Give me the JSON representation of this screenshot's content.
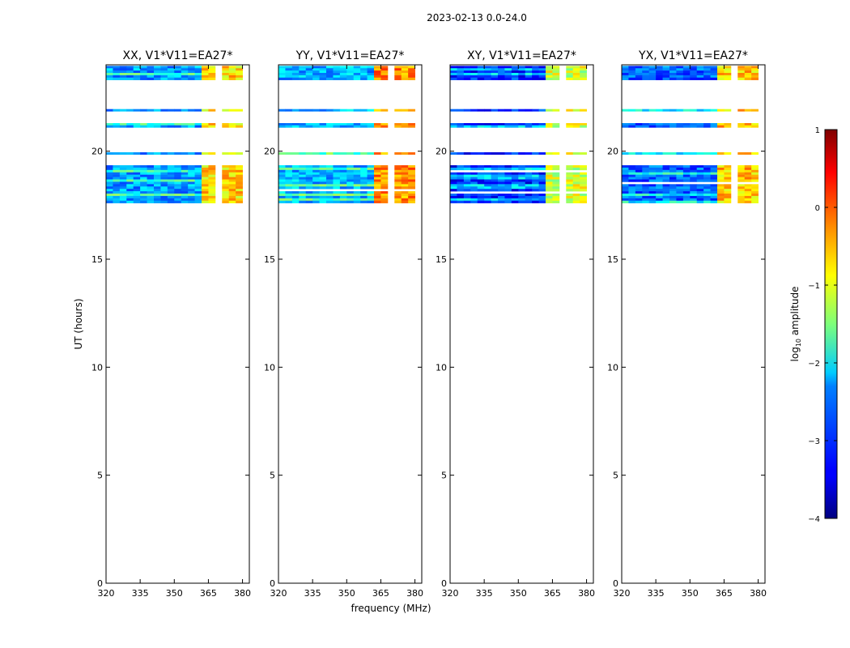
{
  "suptitle": "2023-02-13 0.0-24.0",
  "chart_data": [
    {
      "type": "heatmap",
      "title": "XX, V1*V11=EA27*",
      "xlabel": "",
      "ylabel": "UT (hours)",
      "xlim": [
        320,
        383
      ],
      "ylim": [
        0,
        24
      ],
      "xticks": [
        320,
        335,
        350,
        365,
        380
      ],
      "yticks": [
        0,
        5,
        10,
        15,
        20
      ],
      "data_ut_ranges": [
        [
          17.6,
          19.35
        ],
        [
          19.85,
          19.95
        ],
        [
          21.1,
          21.3
        ],
        [
          21.85,
          21.95
        ],
        [
          23.3,
          23.95
        ]
      ],
      "bright_freq_ranges": [
        [
          363.5,
          368.5
        ],
        [
          370,
          374
        ],
        [
          375.5,
          380
        ]
      ]
    },
    {
      "type": "heatmap",
      "title": "YY, V1*V11=EA27*",
      "xlabel": "",
      "ylabel": "",
      "xlim": [
        320,
        383
      ],
      "ylim": [
        0,
        24
      ],
      "xticks": [
        320,
        335,
        350,
        365,
        380
      ],
      "yticks": [
        0,
        5,
        10,
        15,
        20
      ],
      "data_ut_ranges": [
        [
          17.6,
          19.35
        ],
        [
          19.85,
          19.95
        ],
        [
          21.1,
          21.3
        ],
        [
          21.85,
          21.95
        ],
        [
          23.3,
          23.95
        ]
      ],
      "bright_freq_ranges": [
        [
          363.5,
          368.5
        ],
        [
          370,
          374
        ],
        [
          375.5,
          380
        ]
      ]
    },
    {
      "type": "heatmap",
      "title": "XY, V1*V11=EA27*",
      "xlabel": "frequency (MHz)",
      "ylabel": "",
      "xlim": [
        320,
        383
      ],
      "ylim": [
        0,
        24
      ],
      "xticks": [
        320,
        335,
        350,
        365,
        380
      ],
      "yticks": [
        0,
        5,
        10,
        15,
        20
      ],
      "data_ut_ranges": [
        [
          17.6,
          19.35
        ],
        [
          19.85,
          19.95
        ],
        [
          21.1,
          21.3
        ],
        [
          21.85,
          21.95
        ],
        [
          23.3,
          23.95
        ]
      ],
      "bright_freq_ranges": [
        [
          363.5,
          368.5
        ],
        [
          370,
          374
        ],
        [
          375.5,
          380
        ]
      ]
    },
    {
      "type": "heatmap",
      "title": "YX, V1*V11=EA27*",
      "xlabel": "",
      "ylabel": "",
      "xlim": [
        320,
        383
      ],
      "ylim": [
        0,
        24
      ],
      "xticks": [
        320,
        335,
        350,
        365,
        380
      ],
      "yticks": [
        0,
        5,
        10,
        15,
        20
      ],
      "data_ut_ranges": [
        [
          17.6,
          19.35
        ],
        [
          19.85,
          19.95
        ],
        [
          21.1,
          21.3
        ],
        [
          21.85,
          21.95
        ],
        [
          23.3,
          23.95
        ]
      ],
      "bright_freq_ranges": [
        [
          363.5,
          368.5
        ],
        [
          370,
          374
        ],
        [
          375.5,
          380
        ]
      ]
    }
  ],
  "colorbar": {
    "label_prefix": "log",
    "label_sub": "10",
    "label_suffix": " amplitude",
    "range": [
      -4,
      1
    ],
    "ticks": [
      1,
      0,
      -1,
      -2,
      -3,
      -4
    ],
    "tick_labels": [
      "1",
      "0",
      "−1",
      "−2",
      "−3",
      "−4"
    ]
  }
}
